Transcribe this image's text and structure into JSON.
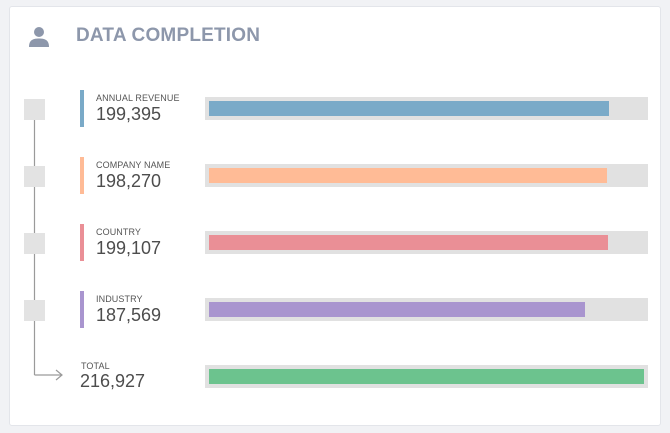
{
  "header": {
    "title": "DATA COMPLETION",
    "icon": "user-icon"
  },
  "metrics": [
    {
      "label": "ANNUAL REVENUE",
      "value": "199,395",
      "color": "#7aaac8",
      "fraction": 0.919
    },
    {
      "label": "COMPANY NAME",
      "value": "198,270",
      "color": "#ffbb96",
      "fraction": 0.914
    },
    {
      "label": "COUNTRY",
      "value": "199,107",
      "color": "#ea8f96",
      "fraction": 0.918
    },
    {
      "label": "INDUSTRY",
      "value": "187,569",
      "color": "#a995cf",
      "fraction": 0.865
    }
  ],
  "total": {
    "label": "TOTAL",
    "value": "216,927",
    "color": "#6cc38e",
    "fraction": 1.0
  }
}
